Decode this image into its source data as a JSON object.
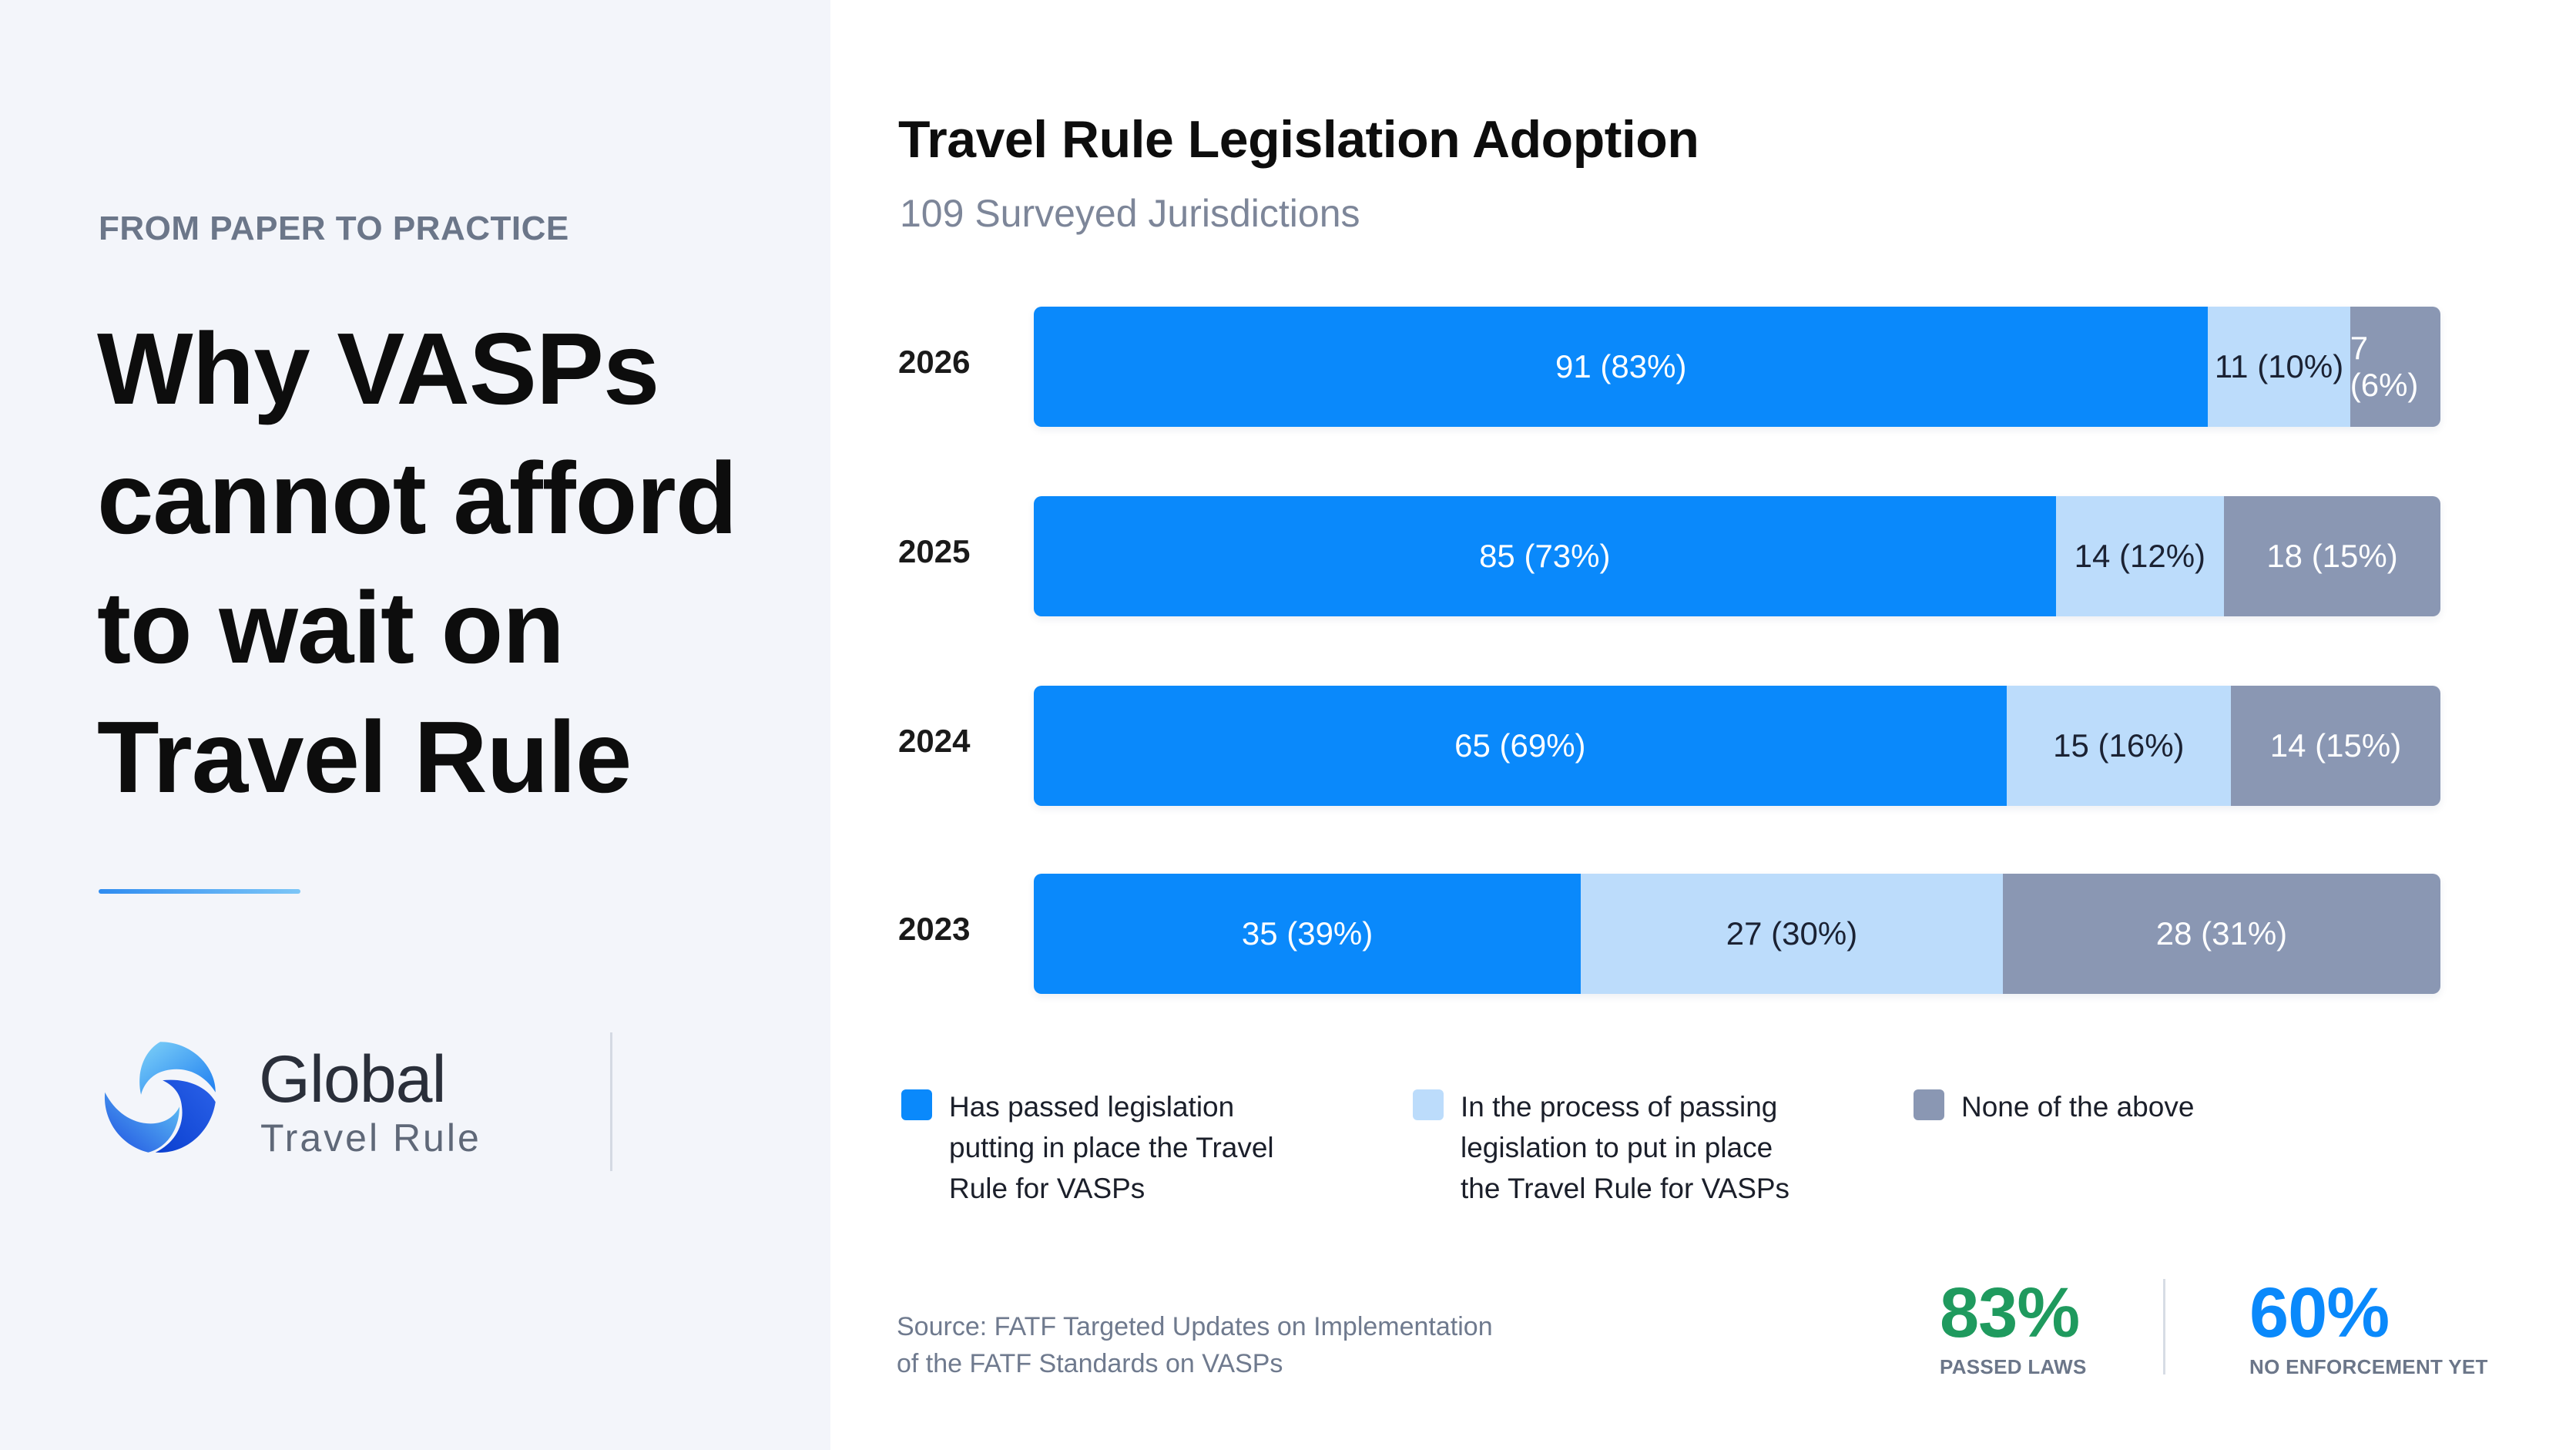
{
  "left": {
    "eyebrow": "FROM PAPER TO PRACTICE",
    "headline_lines": [
      "Why VASPs",
      "cannot afford",
      "to wait on",
      "Travel Rule"
    ],
    "logo": {
      "name": "Global",
      "subtitle": "Travel Rule",
      "icon": "swirl-logo-icon"
    }
  },
  "chart_data": {
    "type": "bar",
    "orientation": "horizontal",
    "stacked": true,
    "normalized": true,
    "title": "Travel Rule Legislation Adoption",
    "subtitle": "109 Surveyed Jurisdictions",
    "categories": [
      "2026",
      "2025",
      "2024",
      "2023"
    ],
    "series": [
      {
        "name": "Has passed legislation putting in place the Travel Rule for VASPs",
        "color": "#0a89fb",
        "values": [
          91,
          85,
          65,
          35
        ],
        "percents": [
          83,
          73,
          69,
          39
        ],
        "labels": [
          "91 (83%)",
          "85 (73%)",
          "65 (69%)",
          "35 (39%)"
        ]
      },
      {
        "name": "In the process of passing legislation to put in place the Travel Rule for VASPs",
        "color": "#bcdcfb",
        "values": [
          11,
          14,
          15,
          27
        ],
        "percents": [
          10,
          12,
          16,
          30
        ],
        "labels": [
          "11 (10%)",
          "14 (12%)",
          "15 (16%)",
          "27 (30%)"
        ]
      },
      {
        "name": "None of the above",
        "color": "#8a97b3",
        "values": [
          7,
          18,
          14,
          28
        ],
        "percents": [
          6,
          15,
          15,
          31
        ],
        "labels": [
          "7 (6%)",
          "18 (15%)",
          "14 (15%)",
          "28 (31%)"
        ]
      }
    ],
    "legend": {
      "placement": "bottom",
      "entries": [
        [
          "Has passed legislation",
          "putting in place the Travel",
          "Rule for VASPs"
        ],
        [
          "In the process of passing",
          "legislation to put in place",
          "the Travel Rule for VASPs"
        ],
        [
          "None of the above"
        ]
      ]
    },
    "grid": false
  },
  "source": {
    "line1": "Source: FATF Targeted Updates on Implementation",
    "line2": "of the FATF Standards on VASPs"
  },
  "stats": [
    {
      "value": "83%",
      "label": "PASSED LAWS",
      "color": "#1f9a5e"
    },
    {
      "value": "60%",
      "label": "NO ENFORCEMENT YET",
      "color": "#0a89fb"
    }
  ]
}
